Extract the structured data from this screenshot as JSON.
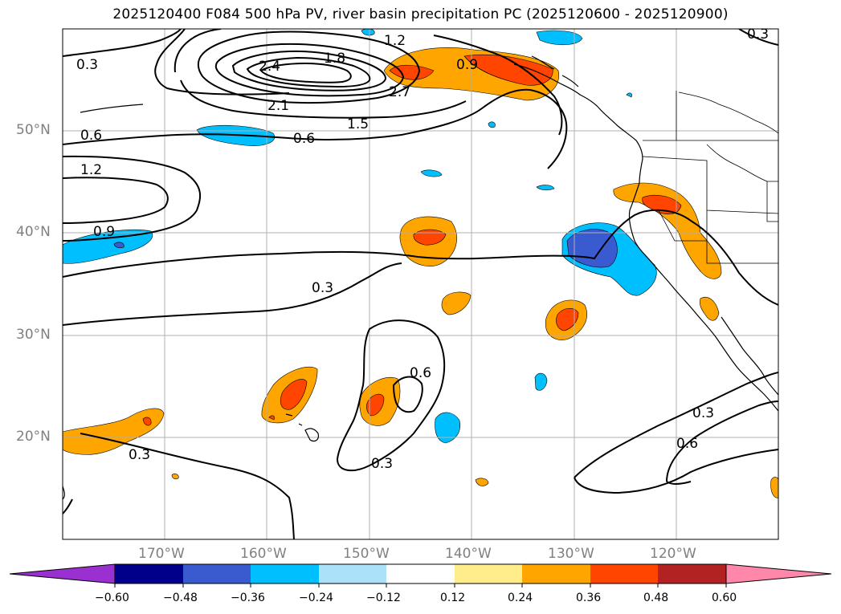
{
  "title": "2025120400 F084 500 hPa PV, river basin precipitation PC (2025120600 - 2025120900)",
  "chart_data": {
    "type": "map",
    "field_contours": "500 hPa PV",
    "field_shaded": "river basin precipitation PC",
    "lat_labels": [
      "50°N",
      "40°N",
      "30°N",
      "20°N"
    ],
    "lon_labels": [
      "170°W",
      "160°W",
      "150°W",
      "140°W",
      "130°W",
      "120°W"
    ],
    "contour_labels": [
      "0.3",
      "0.6",
      "0.9",
      "1.2",
      "1.5",
      "1.8",
      "2.1",
      "2.4",
      "2.7"
    ],
    "colorbar": {
      "ticks": [
        "−0.60",
        "−0.48",
        "−0.36",
        "−0.24",
        "−0.12",
        "0.12",
        "0.24",
        "0.36",
        "0.48",
        "0.60"
      ],
      "colors": [
        "#9b30d0",
        "#00008b",
        "#3a5bd0",
        "#00bfff",
        "#abe2fa",
        "#ffffff",
        "#ffec8b",
        "#ffa500",
        "#ff4500",
        "#b22222",
        "#ff88aa"
      ]
    }
  },
  "colors": {
    "pos_light": "#ffa500",
    "pos_strong": "#ff4500",
    "neg_light": "#00bfff",
    "neg_strong": "#3a5bd0",
    "grid": "#b0b0b0"
  }
}
